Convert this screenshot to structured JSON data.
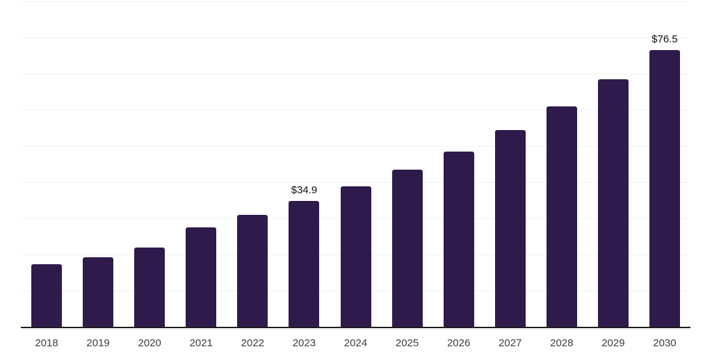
{
  "chart_data": {
    "type": "bar",
    "title": "",
    "xlabel": "",
    "ylabel": "",
    "categories": [
      "2018",
      "2019",
      "2020",
      "2021",
      "2022",
      "2023",
      "2024",
      "2025",
      "2026",
      "2027",
      "2028",
      "2029",
      "2030"
    ],
    "values": [
      17.3,
      19.2,
      22.0,
      27.5,
      30.9,
      34.9,
      38.9,
      43.4,
      48.5,
      54.5,
      61.0,
      68.4,
      76.5
    ],
    "value_unit_prefix": "$",
    "annotations": [
      {
        "category": "2023",
        "label": "$34.9"
      },
      {
        "category": "2030",
        "label": "$76.5"
      }
    ],
    "ylim": [
      0,
      90
    ],
    "grid_step": 10,
    "grid": "horizontal-only",
    "y_tick_labels_shown": false,
    "legend_position": "none",
    "colors": {
      "bar": "#2f1b4b",
      "grid": "#f1f1f1",
      "axis": "#1c1c1c",
      "tick_label": "#3d3d3d",
      "value_label": "#0d0d0d",
      "background": "#ffffff"
    }
  }
}
